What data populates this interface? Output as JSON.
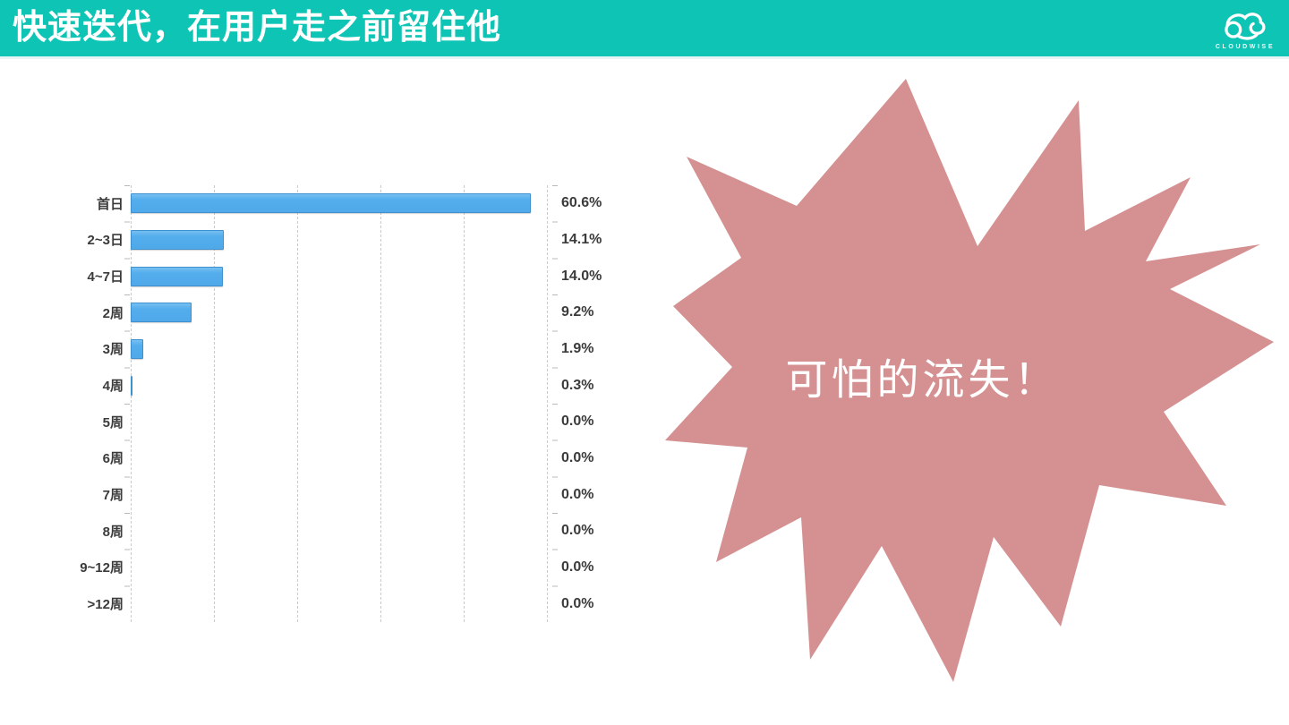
{
  "header": {
    "title": "快速迭代，在用户走之前留住他",
    "brand": "CLOUDWISE"
  },
  "callout": {
    "text": "可怕的流失！"
  },
  "chart_data": {
    "type": "bar",
    "orientation": "horizontal",
    "title": "",
    "xlabel": "",
    "ylabel": "",
    "legend": "none",
    "grid": "vertical-dashed",
    "categories": [
      "首日",
      "2~3日",
      "4~7日",
      "2周",
      "3周",
      "4周",
      "5周",
      "6周",
      "7周",
      "8周",
      "9~12周",
      ">12周"
    ],
    "values": [
      60.6,
      14.1,
      14.0,
      9.2,
      1.9,
      0.3,
      0.0,
      0.0,
      0.0,
      0.0,
      0.0,
      0.0
    ],
    "value_labels": [
      "60.6%",
      "14.1%",
      "14.0%",
      "9.2%",
      "1.9%",
      "0.3%",
      "0.0%",
      "0.0%",
      "0.0%",
      "0.0%",
      "0.0%",
      "0.0%"
    ],
    "xlim": [
      0,
      63
    ],
    "gridline_percents": [
      0,
      20,
      40,
      60,
      80,
      100
    ]
  },
  "colors": {
    "header_bg": "#0ec5b5",
    "bar_fill": "#54adec",
    "bar_border": "#3e90cf",
    "starburst": "#d59192",
    "grid": "#cbcbcb",
    "text": "#3b3b3b"
  }
}
